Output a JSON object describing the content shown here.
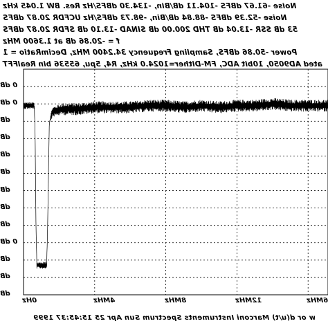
{
  "chart_data": {
    "type": "line",
    "view": "mirrored",
    "header_lines": [
      "Noise -61.67 dBFS -104.11 dB/Bin, -134.30 dBFS/Hz Res. BW 1.045 kHz",
      "Noise -52.39 dBFS -88.84 dB/Bin, -98.73 dBFS/Hz UCFDR 20.87 dBFS",
      "53 dB SSR -13.04 dB THD 200.00 dB SINAD -13.10 dB SFDR 20.87 dBFS",
      "f = -20.86 dB at 1.3600 MHz",
      "Power -50.86 dBFS, Sampling Frequency 34.2400 MHz, DecimRatio = 1",
      "ated AD9050, 10bit ADC, FM-Dither=1024.0 kHz, R4, 5pu, 65536 bin RealFFT"
    ],
    "y_tick_labels": [
      "0 dB",
      "0 dB",
      "dB",
      "dB",
      "dB",
      "dB",
      "dB",
      "dB",
      "dB",
      "0 dB",
      "dB",
      "dB",
      "dB"
    ],
    "x_tick_labels": [
      "0Hz",
      "4MHz",
      "8MHz",
      "12MHz",
      "16MHz"
    ],
    "x_ticks_mhz": [
      0,
      4,
      8,
      12,
      16
    ],
    "xlim_mhz": [
      0,
      17.12
    ],
    "ylim_dbfs": [
      -130,
      0
    ],
    "y_step_dbfs": 10,
    "grid": true,
    "series": [
      {
        "x_mhz": [
          0.0,
          0.6,
          0.65,
          0.7,
          0.75,
          1.3,
          1.35,
          1.45,
          1.6,
          1.8,
          2.2,
          3,
          4,
          5,
          6,
          7,
          8,
          9,
          10,
          11,
          12,
          13,
          14,
          15,
          16,
          17.1
        ],
        "y_dbfs": [
          -21,
          -21,
          -35,
          -91,
          -113,
          -113,
          -93,
          -31,
          -25,
          -24,
          -23,
          -23,
          -22,
          -22,
          -22,
          -21,
          -21,
          -22,
          -21,
          -22,
          -21,
          -21,
          -20,
          -21,
          -21,
          -21
        ],
        "spread_db": [
          4,
          4,
          0,
          0,
          4,
          4,
          0,
          0,
          6,
          6,
          7,
          7,
          7,
          7,
          7,
          7,
          7,
          7,
          7,
          7,
          7,
          7,
          7,
          7,
          7,
          7
        ]
      }
    ]
  },
  "footer": {
    "text": "w or d(u/t)   Marconi Instruments Spectrum   Sun Apr 25 15:45:37 1999"
  }
}
